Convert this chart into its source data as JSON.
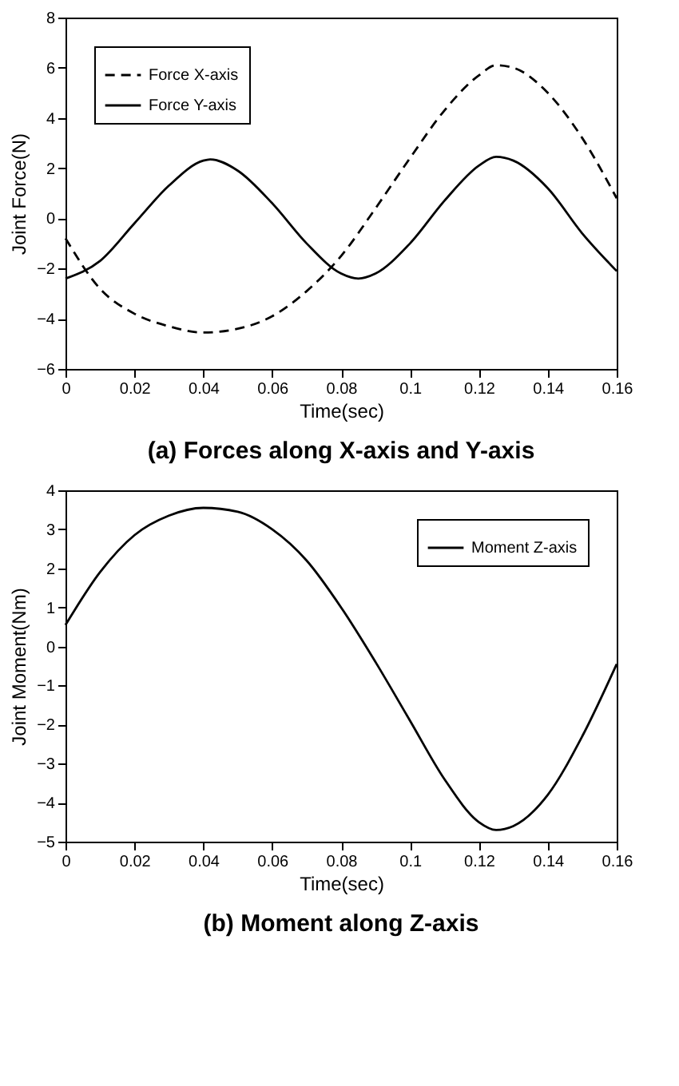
{
  "chart_data": [
    {
      "type": "line",
      "title": "(a) Forces along X-axis and Y-axis",
      "xlabel": "Time(sec)",
      "ylabel": "Joint Force(N)",
      "xlim": [
        0,
        0.16
      ],
      "xticks": [
        0,
        0.02,
        0.04,
        0.06,
        0.08,
        0.1,
        0.12,
        0.14,
        0.16
      ],
      "ylim": [
        -6,
        8
      ],
      "yticks": [
        -6,
        -4,
        -2,
        0,
        2,
        4,
        6,
        8
      ],
      "grid": false,
      "legend": "top left",
      "x": [
        0,
        0.01,
        0.02,
        0.03,
        0.04,
        0.05,
        0.06,
        0.07,
        0.08,
        0.09,
        0.1,
        0.11,
        0.12,
        0.125,
        0.13,
        0.14,
        0.15,
        0.16
      ],
      "series": [
        {
          "name": "Force X-axis",
          "color": "#000000",
          "line_style": "dashed",
          "values": [
            -0.8,
            -2.8,
            -3.8,
            -4.3,
            -4.55,
            -4.4,
            -3.9,
            -2.9,
            -1.5,
            0.4,
            2.4,
            4.3,
            5.7,
            6.1,
            6.0,
            5.0,
            3.2,
            0.8
          ]
        },
        {
          "name": "Force Y-axis",
          "color": "#000000",
          "line_style": "solid",
          "x": [
            0,
            0.01,
            0.02,
            0.03,
            0.04,
            0.042,
            0.05,
            0.06,
            0.07,
            0.08,
            0.085,
            0.09,
            0.1,
            0.11,
            0.12,
            0.125,
            0.13,
            0.14,
            0.15,
            0.16
          ],
          "values": [
            -2.4,
            -1.7,
            -0.2,
            1.3,
            2.3,
            2.35,
            1.9,
            0.6,
            -1.0,
            -2.2,
            -2.4,
            -2.2,
            -1.0,
            0.7,
            2.1,
            2.45,
            2.3,
            1.2,
            -0.6,
            -2.1
          ]
        }
      ]
    },
    {
      "type": "line",
      "title": "(b) Moment along Z-axis",
      "xlabel": "Time(sec)",
      "ylabel": "Joint Moment(Nm)",
      "xlim": [
        0,
        0.16
      ],
      "xticks": [
        0,
        0.02,
        0.04,
        0.06,
        0.08,
        0.1,
        0.12,
        0.14,
        0.16
      ],
      "ylim": [
        -5,
        4
      ],
      "yticks": [
        -5,
        -4,
        -3,
        -2,
        -1,
        0,
        1,
        2,
        3,
        4
      ],
      "grid": false,
      "legend": "top right",
      "x": [
        0,
        0.01,
        0.02,
        0.03,
        0.04,
        0.05,
        0.06,
        0.07,
        0.08,
        0.09,
        0.1,
        0.11,
        0.12,
        0.125,
        0.13,
        0.14,
        0.15,
        0.16
      ],
      "series": [
        {
          "name": "Moment Z-axis",
          "color": "#000000",
          "line_style": "solid",
          "values": [
            0.55,
            1.9,
            2.85,
            3.35,
            3.55,
            3.45,
            3.0,
            2.2,
            1.0,
            -0.4,
            -1.9,
            -3.4,
            -4.5,
            -4.7,
            -4.6,
            -3.8,
            -2.3,
            -0.45
          ]
        }
      ]
    }
  ]
}
